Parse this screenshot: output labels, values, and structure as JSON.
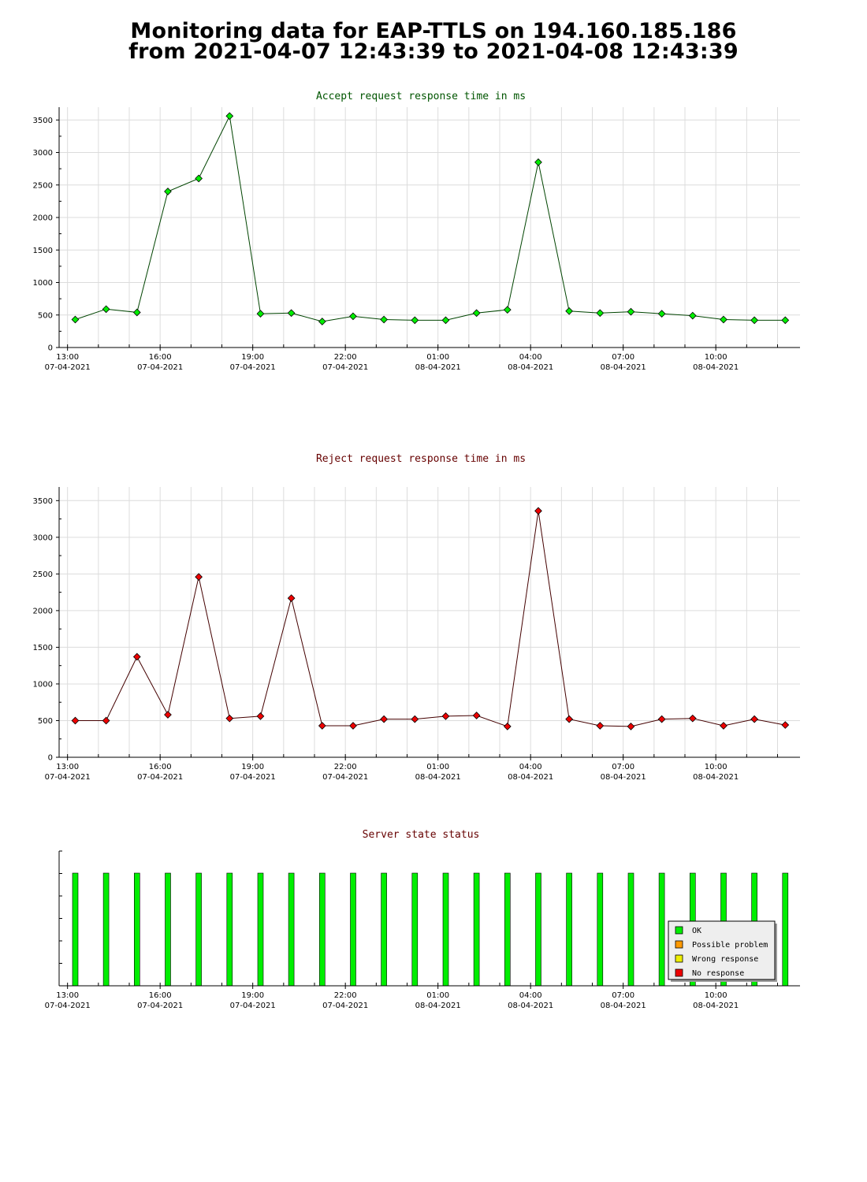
{
  "title": {
    "line1": "Monitoring data for EAP-TTLS on 194.160.185.186",
    "line2": "from 2021-04-07 12:43:39 to 2021-04-08 12:43:39"
  },
  "chart_data": [
    {
      "type": "line",
      "title": "Accept request response time in ms",
      "title_color": "#005500",
      "ylim": [
        0,
        3600
      ],
      "yticks": [
        0,
        500,
        1000,
        1500,
        2000,
        2500,
        3000,
        3500
      ],
      "x_ticks": [
        {
          "time": "13:00",
          "date": "07-04-2021"
        },
        {
          "time": "16:00",
          "date": "07-04-2021"
        },
        {
          "time": "19:00",
          "date": "07-04-2021"
        },
        {
          "time": "22:00",
          "date": "07-04-2021"
        },
        {
          "time": "01:00",
          "date": "08-04-2021"
        },
        {
          "time": "04:00",
          "date": "08-04-2021"
        },
        {
          "time": "07:00",
          "date": "08-04-2021"
        },
        {
          "time": "10:00",
          "date": "08-04-2021"
        }
      ],
      "grid": true,
      "series": [
        {
          "line_color": "#004400",
          "marker_color": "#00ee00",
          "x": [
            "2021-04-07 13:15",
            "2021-04-07 14:15",
            "2021-04-07 15:15",
            "2021-04-07 16:15",
            "2021-04-07 17:15",
            "2021-04-07 18:15",
            "2021-04-07 19:15",
            "2021-04-07 20:15",
            "2021-04-07 21:15",
            "2021-04-07 22:15",
            "2021-04-07 23:15",
            "2021-04-08 00:15",
            "2021-04-08 01:15",
            "2021-04-08 02:15",
            "2021-04-08 03:15",
            "2021-04-08 04:15",
            "2021-04-08 05:15",
            "2021-04-08 06:15",
            "2021-04-08 07:15",
            "2021-04-08 08:15",
            "2021-04-08 09:15",
            "2021-04-08 10:15",
            "2021-04-08 11:15",
            "2021-04-08 12:15"
          ],
          "values": [
            430,
            590,
            540,
            2400,
            2600,
            3560,
            520,
            530,
            400,
            480,
            430,
            420,
            420,
            530,
            580,
            2850,
            560,
            530,
            550,
            520,
            490,
            430,
            420,
            420
          ]
        }
      ]
    },
    {
      "type": "line",
      "title": "Reject request response time in ms",
      "title_color": "#660000",
      "ylim": [
        0,
        3600
      ],
      "yticks": [
        0,
        500,
        1000,
        1500,
        2000,
        2500,
        3000,
        3500
      ],
      "x_ticks": [
        {
          "time": "13:00",
          "date": "07-04-2021"
        },
        {
          "time": "16:00",
          "date": "07-04-2021"
        },
        {
          "time": "19:00",
          "date": "07-04-2021"
        },
        {
          "time": "22:00",
          "date": "07-04-2021"
        },
        {
          "time": "01:00",
          "date": "08-04-2021"
        },
        {
          "time": "04:00",
          "date": "08-04-2021"
        },
        {
          "time": "07:00",
          "date": "08-04-2021"
        },
        {
          "time": "10:00",
          "date": "08-04-2021"
        }
      ],
      "grid": true,
      "series": [
        {
          "line_color": "#440000",
          "marker_color": "#ee0000",
          "x": [
            "2021-04-07 13:15",
            "2021-04-07 14:15",
            "2021-04-07 15:15",
            "2021-04-07 16:15",
            "2021-04-07 17:15",
            "2021-04-07 18:15",
            "2021-04-07 19:15",
            "2021-04-07 20:15",
            "2021-04-07 21:15",
            "2021-04-07 22:15",
            "2021-04-07 23:15",
            "2021-04-08 00:15",
            "2021-04-08 01:15",
            "2021-04-08 02:15",
            "2021-04-08 03:15",
            "2021-04-08 04:15",
            "2021-04-08 05:15",
            "2021-04-08 06:15",
            "2021-04-08 07:15",
            "2021-04-08 08:15",
            "2021-04-08 09:15",
            "2021-04-08 10:15",
            "2021-04-08 11:15",
            "2021-04-08 12:15"
          ],
          "values": [
            500,
            500,
            1370,
            580,
            2460,
            530,
            560,
            2170,
            430,
            430,
            520,
            520,
            560,
            570,
            420,
            3360,
            520,
            430,
            420,
            520,
            530,
            430,
            520,
            440
          ]
        }
      ]
    },
    {
      "type": "bar",
      "title": "Server state status",
      "title_color": "#660000",
      "x_ticks": [
        {
          "time": "13:00",
          "date": "07-04-2021"
        },
        {
          "time": "16:00",
          "date": "07-04-2021"
        },
        {
          "time": "19:00",
          "date": "07-04-2021"
        },
        {
          "time": "22:00",
          "date": "07-04-2021"
        },
        {
          "time": "01:00",
          "date": "08-04-2021"
        },
        {
          "time": "04:00",
          "date": "08-04-2021"
        },
        {
          "time": "07:00",
          "date": "08-04-2021"
        },
        {
          "time": "10:00",
          "date": "08-04-2021"
        }
      ],
      "x": [
        "2021-04-07 13:15",
        "2021-04-07 14:15",
        "2021-04-07 15:15",
        "2021-04-07 16:15",
        "2021-04-07 17:15",
        "2021-04-07 18:15",
        "2021-04-07 19:15",
        "2021-04-07 20:15",
        "2021-04-07 21:15",
        "2021-04-07 22:15",
        "2021-04-07 23:15",
        "2021-04-08 00:15",
        "2021-04-08 01:15",
        "2021-04-08 02:15",
        "2021-04-08 03:15",
        "2021-04-08 04:15",
        "2021-04-08 05:15",
        "2021-04-08 06:15",
        "2021-04-08 07:15",
        "2021-04-08 08:15",
        "2021-04-08 09:15",
        "2021-04-08 10:15",
        "2021-04-08 11:15",
        "2021-04-08 12:15"
      ],
      "states": [
        "OK",
        "OK",
        "OK",
        "OK",
        "OK",
        "OK",
        "OK",
        "OK",
        "OK",
        "OK",
        "OK",
        "OK",
        "OK",
        "OK",
        "OK",
        "OK",
        "OK",
        "OK",
        "OK",
        "OK",
        "OK",
        "OK",
        "OK",
        "OK"
      ],
      "legend": [
        {
          "label": "OK",
          "color": "#00ee00"
        },
        {
          "label": "Possible problem",
          "color": "#ff9900"
        },
        {
          "label": "Wrong response",
          "color": "#eeee00"
        },
        {
          "label": "No response",
          "color": "#ee0000"
        }
      ],
      "legend_position": "bottom-right"
    }
  ]
}
